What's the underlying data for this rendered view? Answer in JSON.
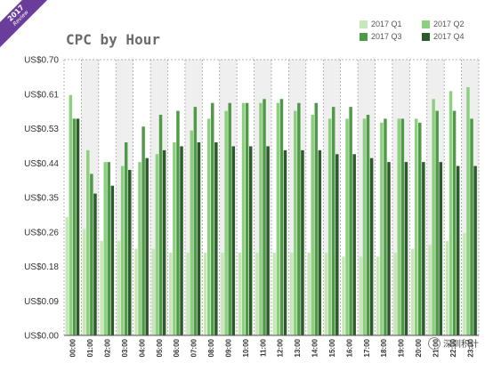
{
  "badge": {
    "year": "2017",
    "label": "Review"
  },
  "chart_data": {
    "type": "bar",
    "title": "CPC by Hour",
    "xlabel": "",
    "ylabel": "",
    "ylim": [
      0,
      0.7
    ],
    "yticks": [
      "US$0.00",
      "US$0.09",
      "US$0.18",
      "US$0.26",
      "US$0.35",
      "US$0.44",
      "US$0.53",
      "US$0.61",
      "US$0.70"
    ],
    "legend_position": "top-right",
    "grid": "vertical dashed lines with alternating shaded columns",
    "categories": [
      "00:00",
      "01:00",
      "02:00",
      "03:00",
      "04:00",
      "05:00",
      "06:00",
      "07:00",
      "08:00",
      "09:00",
      "10:00",
      "11:00",
      "12:00",
      "13:00",
      "14:00",
      "15:00",
      "16:00",
      "17:00",
      "18:00",
      "19:00",
      "20:00",
      "21:00",
      "22:00",
      "23:00"
    ],
    "series": [
      {
        "name": "2017 Q1",
        "color": "#c8e6b8",
        "values": [
          0.3,
          0.27,
          0.24,
          0.24,
          0.22,
          0.22,
          0.21,
          0.21,
          0.21,
          0.21,
          0.21,
          0.21,
          0.21,
          0.21,
          0.21,
          0.21,
          0.2,
          0.2,
          0.2,
          0.21,
          0.22,
          0.23,
          0.24,
          0.26
        ]
      },
      {
        "name": "2017 Q2",
        "color": "#8ccf7e",
        "values": [
          0.61,
          0.47,
          0.44,
          0.43,
          0.44,
          0.46,
          0.49,
          0.52,
          0.55,
          0.57,
          0.59,
          0.59,
          0.59,
          0.57,
          0.56,
          0.55,
          0.55,
          0.55,
          0.54,
          0.55,
          0.55,
          0.6,
          0.62,
          0.63
        ]
      },
      {
        "name": "2017 Q3",
        "color": "#4f9a47",
        "values": [
          0.55,
          0.41,
          0.44,
          0.49,
          0.53,
          0.56,
          0.57,
          0.58,
          0.59,
          0.59,
          0.59,
          0.6,
          0.6,
          0.59,
          0.59,
          0.58,
          0.58,
          0.56,
          0.55,
          0.55,
          0.54,
          0.57,
          0.57,
          0.55
        ]
      },
      {
        "name": "2017 Q4",
        "color": "#2d5a2a",
        "values": [
          0.55,
          0.36,
          0.38,
          0.42,
          0.45,
          0.47,
          0.48,
          0.49,
          0.49,
          0.48,
          0.48,
          0.48,
          0.47,
          0.47,
          0.47,
          0.46,
          0.46,
          0.45,
          0.44,
          0.44,
          0.44,
          0.44,
          0.43,
          0.43
        ]
      }
    ]
  },
  "watermark": {
    "text": "深圳积计"
  }
}
